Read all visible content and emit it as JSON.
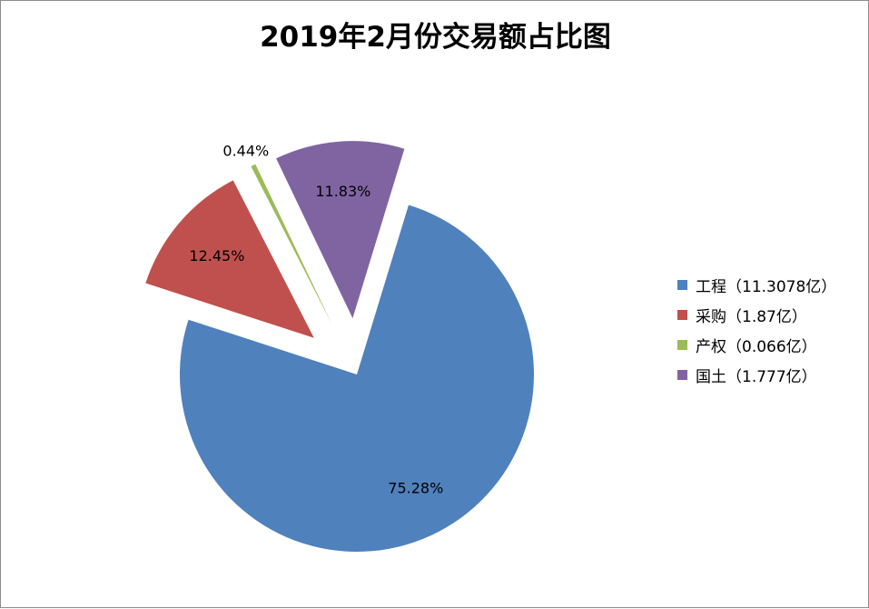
{
  "chart_data": {
    "type": "pie",
    "title": "2019年2月份交易额占比图",
    "slices": [
      {
        "legend": "工程（11.3078亿）",
        "value": 11.3078,
        "percent_label": "75.28%",
        "color": "#4F81BD",
        "exploded": false
      },
      {
        "legend": "采购（1.87亿）",
        "value": 1.87,
        "percent_label": "12.45%",
        "color": "#C0504D",
        "exploded": true
      },
      {
        "legend": "产权（0.066亿）",
        "value": 0.066,
        "percent_label": "0.44%",
        "color": "#9BBB59",
        "exploded": true
      },
      {
        "legend": "国土（1.777亿）",
        "value": 1.777,
        "percent_label": "11.83%",
        "color": "#8064A2",
        "exploded": true
      }
    ],
    "legend_position": "right"
  }
}
